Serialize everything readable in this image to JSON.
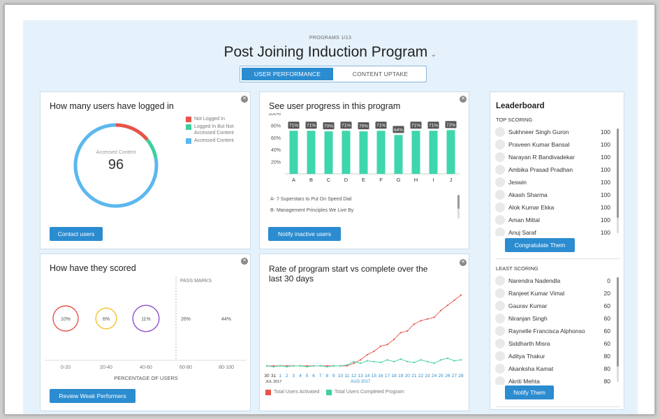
{
  "header": {
    "subtitle": "PROGRAMS 1/13",
    "title": "Post Joining Induction Program",
    "chevron": "⌄",
    "tabs": [
      {
        "label": "USER PERFORMANCE",
        "active": true
      },
      {
        "label": "CONTENT UPTAKE",
        "active": false
      }
    ]
  },
  "login_card": {
    "title": "How many users have logged in",
    "center_label": "Accessed Content",
    "center_value": "96",
    "legend": [
      {
        "label": "Not Logged In",
        "color": "#e8534a"
      },
      {
        "label": "Logged In But Not Accessed Content",
        "color": "#3ecf9c"
      },
      {
        "label": "Accessed Content",
        "color": "#5bb8ef"
      }
    ],
    "button": "Contact users",
    "close": "✕"
  },
  "progress_card": {
    "title": "See user progress in this program",
    "items": [
      "A- 7 Superstars to Put On Speed Dial",
      "B- Management Principles We Live By"
    ],
    "button": "Notify inactive users",
    "close": "✕"
  },
  "leaderboard": {
    "title": "Leaderboard",
    "top_label": "TOP SCORING",
    "top": [
      {
        "name": "Sukhneer Singh Guron",
        "score": "100"
      },
      {
        "name": "Praveen Kumar Bansal",
        "score": "100"
      },
      {
        "name": "Narayan R Bandivadekar",
        "score": "100"
      },
      {
        "name": "Ambika Prasad Pradhan",
        "score": "100"
      },
      {
        "name": "Jeswin",
        "score": "100"
      },
      {
        "name": "Akash Sharma",
        "score": "100"
      },
      {
        "name": "Alok Kumar Ekka",
        "score": "100"
      },
      {
        "name": "Aman Mittal",
        "score": "100"
      },
      {
        "name": "Anuj Saraf",
        "score": "100"
      }
    ],
    "top_button": "Congratulate Them",
    "least_label": "LEAST SCORING",
    "least": [
      {
        "name": "Narendra Nadendla",
        "score": "0"
      },
      {
        "name": "Ranjeet Kumar Vimal",
        "score": "20"
      },
      {
        "name": "Gaurav Kumar",
        "score": "60"
      },
      {
        "name": "Niranjan Singh",
        "score": "60"
      },
      {
        "name": "Raynelle Francisca Alphonso",
        "score": "60"
      },
      {
        "name": "Siddharth Misra",
        "score": "60"
      },
      {
        "name": "Aditya Thakur",
        "score": "80"
      },
      {
        "name": "Akanksha Kamat",
        "score": "80"
      },
      {
        "name": "Akriti Mehta",
        "score": "80"
      }
    ],
    "least_button": "Notify Them"
  },
  "score_card": {
    "title": "How have they scored",
    "button": "Review Weak Performers",
    "close": "✕"
  },
  "rate_card": {
    "title_line1": "Rate of program start vs complete over the",
    "title_line2": "last 30 days",
    "legend": [
      {
        "label": "Total Users Activated",
        "color": "#e8534a"
      },
      {
        "label": "Total Users Completed Program",
        "color": "#3ecf9c"
      }
    ],
    "close": "✕"
  },
  "chart_data": [
    {
      "type": "pie",
      "title": "How many users have logged in",
      "categories": [
        "Not Logged In",
        "Logged In But Not Accessed Content",
        "Accessed Content"
      ],
      "values": [
        14,
        8,
        78
      ],
      "center_value": 96,
      "colors": [
        "#e8534a",
        "#3ecf9c",
        "#5bb8ef"
      ]
    },
    {
      "type": "bar",
      "title": "See user progress in this program",
      "categories": [
        "A",
        "B",
        "C",
        "D",
        "E",
        "F",
        "G",
        "H",
        "I",
        "J"
      ],
      "values": [
        71,
        71,
        70,
        71,
        70,
        71,
        64,
        71,
        71,
        72
      ],
      "data_labels": [
        "71%",
        "71%",
        "70%",
        "71%",
        "70%",
        "71%",
        "64%",
        "71%",
        "71%",
        "72%"
      ],
      "y_ticks": [
        "100%",
        "80%",
        "60%",
        "40%",
        "20%"
      ],
      "ylim": [
        0,
        100
      ],
      "color": "#3ed6ad"
    },
    {
      "type": "scatter",
      "title": "How have they scored",
      "xlabel": "PERCENTAGE OF USERS",
      "categories": [
        "0-20",
        "20-40",
        "40-60",
        "60-80",
        "80-100"
      ],
      "values": [
        10,
        6,
        11,
        26,
        44
      ],
      "labels": [
        "10%",
        "6%",
        "11%",
        "26%",
        "44%"
      ],
      "colors": [
        "#e8534a",
        "#f2c230",
        "#8e4fd0",
        "",
        ""
      ],
      "annotation": "PASS MARKS"
    },
    {
      "type": "line",
      "title": "Rate of program start vs complete over the last 30 days",
      "x": [
        "30",
        "31",
        "1",
        "2",
        "3",
        "4",
        "5",
        "6",
        "7",
        "8",
        "9",
        "10",
        "11",
        "12",
        "13",
        "14",
        "15",
        "16",
        "17",
        "18",
        "19",
        "20",
        "21",
        "22",
        "23",
        "24",
        "25",
        "26",
        "27",
        "28"
      ],
      "x_group_labels": [
        "JUL 2017",
        "AUG 2017"
      ],
      "ylim": [
        0,
        100
      ],
      "series": [
        {
          "name": "Total Users Activated",
          "color": "#e8534a",
          "values": [
            5,
            5,
            5,
            5,
            5,
            5,
            5,
            5,
            5,
            5,
            5,
            5,
            5,
            8,
            12,
            18,
            22,
            28,
            30,
            36,
            44,
            46,
            54,
            58,
            60,
            62,
            70,
            76,
            82,
            88
          ]
        },
        {
          "name": "Total Users Completed Program",
          "color": "#3ecf9c",
          "values": [
            5,
            4,
            5,
            4,
            5,
            5,
            4,
            5,
            5,
            4,
            5,
            5,
            6,
            10,
            8,
            11,
            10,
            9,
            12,
            10,
            13,
            10,
            9,
            12,
            10,
            8,
            12,
            14,
            11,
            12
          ]
        }
      ]
    }
  ]
}
